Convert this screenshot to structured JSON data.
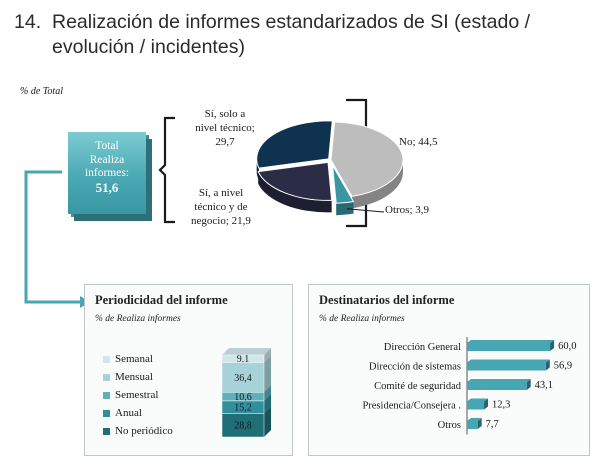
{
  "header": {
    "number": "14.",
    "title_line1": "Realización de informes estandarizados de SI (estado /",
    "title_line2": "evolución / incidentes)"
  },
  "pct_total_label": "% de Total",
  "total_box": {
    "line1": "Total",
    "line2": "Realiza",
    "line3": "informes:",
    "value": "51,6"
  },
  "chart_data": [
    {
      "type": "pie",
      "title": "",
      "slices": [
        {
          "label": "No",
          "value": 44.5,
          "display": "No; 44,5",
          "color": "#bdbdbd"
        },
        {
          "label": "Otros",
          "value": 3.9,
          "display": "Otros; 3,9",
          "color": "#3a96a2"
        },
        {
          "label": "Sí, a nivel técnico y de negocio",
          "value": 21.9,
          "display": [
            "Sí, a nivel",
            "técnico y de",
            "negocio; 21,9"
          ],
          "color": "#2a2d45"
        },
        {
          "label": "Sí, solo a nivel técnico",
          "value": 29.7,
          "display": [
            "Sí, solo a",
            "nivel técnico;",
            "29,7"
          ],
          "color": "#0f3250"
        }
      ]
    },
    {
      "type": "bar",
      "stacked": true,
      "title": "Periodicidad del informe",
      "subtitle": "% de Realiza informes",
      "categories": [
        "Semanal",
        "Mensual",
        "Semestral",
        "Anual",
        "No periódico"
      ],
      "values": [
        9.1,
        36.4,
        10.6,
        15.2,
        28.8
      ],
      "value_labels": [
        "9,1",
        "36,4",
        "10,6",
        "15,2",
        "28,8"
      ],
      "colors": [
        "#cfe7ea",
        "#a7d2d8",
        "#5fb0bb",
        "#2f8f9c",
        "#1f6e78"
      ]
    },
    {
      "type": "bar",
      "orientation": "horizontal",
      "title": "Destinatarios del informe",
      "subtitle": "% de Realiza informes",
      "categories": [
        "Dirección General",
        "Dirección de sistemas",
        "Comité de seguridad",
        "Presidencia/Consejera .",
        "Otros"
      ],
      "values": [
        60.0,
        56.9,
        43.1,
        12.3,
        7.7
      ],
      "value_labels": [
        "60,0",
        "56,9",
        "43,1",
        "12,3",
        "7,7"
      ],
      "xlim": [
        0,
        65
      ],
      "color": "#46a6b1"
    }
  ]
}
